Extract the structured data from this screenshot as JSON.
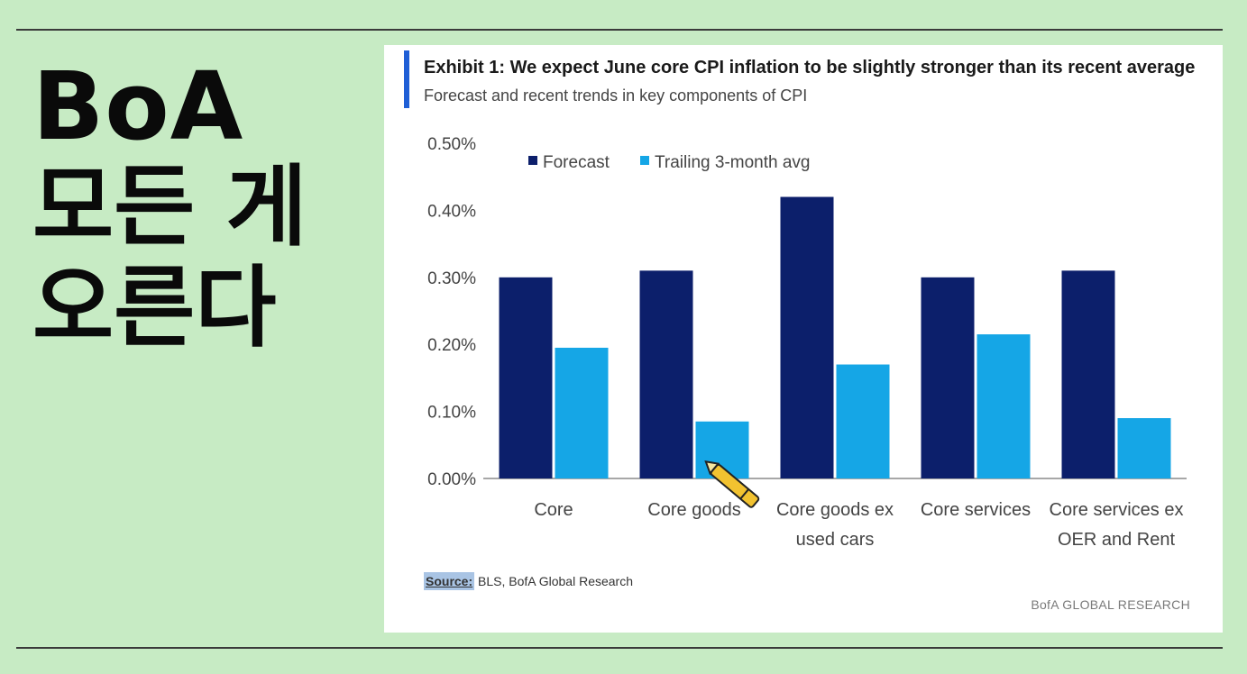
{
  "headline": {
    "line1": "BoA",
    "line2": "모든 게",
    "line3": "오른다"
  },
  "exhibit": {
    "title": "Exhibit 1: We expect June core CPI inflation to be slightly stronger than its recent average",
    "subtitle": "Forecast and recent trends in key components of CPI",
    "source_label": "Source:",
    "source_text": " BLS, BofA Global Research",
    "brand": "BofA GLOBAL RESEARCH"
  },
  "colors": {
    "forecast": "#0c1f6b",
    "trailing": "#15a6e6",
    "background": "#c7ebc4",
    "accent": "#1f5fd6",
    "pen": "#f2c230"
  },
  "chart_data": {
    "type": "bar",
    "categories": [
      [
        "Core"
      ],
      [
        "Core goods"
      ],
      [
        "Core goods ex",
        "used cars"
      ],
      [
        "Core services"
      ],
      [
        "Core services ex",
        "OER and Rent"
      ]
    ],
    "series": [
      {
        "name": "Forecast",
        "values": [
          0.3,
          0.31,
          0.42,
          0.3,
          0.31
        ]
      },
      {
        "name": "Trailing 3-month avg",
        "values": [
          0.195,
          0.085,
          0.17,
          0.215,
          0.09
        ]
      }
    ],
    "yticks": [
      "0.00%",
      "0.10%",
      "0.20%",
      "0.30%",
      "0.40%",
      "0.50%"
    ],
    "ylim": [
      0,
      0.5
    ],
    "legend_position": "top-left",
    "grid": false
  }
}
